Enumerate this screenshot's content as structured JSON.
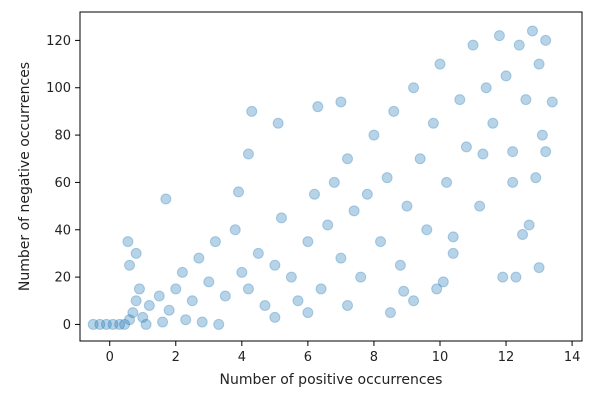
{
  "chart_data": {
    "type": "scatter",
    "title": "",
    "xlabel": "Number of positive occurrences",
    "ylabel": "Number of negative occurrences",
    "xlim": [
      -0.9,
      14.3
    ],
    "ylim": [
      -7,
      132
    ],
    "xticks": [
      0,
      2,
      4,
      6,
      8,
      10,
      12,
      14
    ],
    "yticks": [
      0,
      20,
      40,
      60,
      80,
      100,
      120
    ],
    "color": "#1f77b4",
    "grid": false,
    "series": [
      {
        "values": [
          [
            -0.5,
            0
          ],
          [
            -0.3,
            0
          ],
          [
            -0.1,
            0
          ],
          [
            0.1,
            0
          ],
          [
            0.3,
            0
          ],
          [
            0.45,
            0
          ],
          [
            0.6,
            2
          ],
          [
            0.7,
            5
          ],
          [
            0.8,
            10
          ],
          [
            0.9,
            15
          ],
          [
            0.6,
            25
          ],
          [
            0.55,
            35
          ],
          [
            0.8,
            30
          ],
          [
            1.0,
            3
          ],
          [
            1.2,
            8
          ],
          [
            1.5,
            12
          ],
          [
            1.8,
            6
          ],
          [
            2.0,
            15
          ],
          [
            2.2,
            22
          ],
          [
            2.5,
            10
          ],
          [
            2.7,
            28
          ],
          [
            3.0,
            18
          ],
          [
            3.2,
            35
          ],
          [
            3.5,
            12
          ],
          [
            3.8,
            40
          ],
          [
            4.0,
            22
          ],
          [
            4.2,
            15
          ],
          [
            4.5,
            30
          ],
          [
            4.7,
            8
          ],
          [
            5.0,
            25
          ],
          [
            5.2,
            45
          ],
          [
            5.5,
            20
          ],
          [
            5.7,
            10
          ],
          [
            6.0,
            35
          ],
          [
            6.2,
            55
          ],
          [
            6.4,
            15
          ],
          [
            6.6,
            42
          ],
          [
            6.8,
            60
          ],
          [
            7.0,
            28
          ],
          [
            7.2,
            70
          ],
          [
            7.4,
            48
          ],
          [
            7.6,
            20
          ],
          [
            7.8,
            55
          ],
          [
            8.0,
            80
          ],
          [
            8.2,
            35
          ],
          [
            8.4,
            62
          ],
          [
            8.6,
            90
          ],
          [
            8.8,
            25
          ],
          [
            9.0,
            50
          ],
          [
            9.2,
            100
          ],
          [
            9.4,
            70
          ],
          [
            9.6,
            40
          ],
          [
            9.8,
            85
          ],
          [
            10.0,
            110
          ],
          [
            10.2,
            60
          ],
          [
            10.4,
            30
          ],
          [
            10.6,
            95
          ],
          [
            10.8,
            75
          ],
          [
            11.0,
            118
          ],
          [
            11.2,
            50
          ],
          [
            11.4,
            100
          ],
          [
            11.6,
            85
          ],
          [
            11.8,
            122
          ],
          [
            12.0,
            105
          ],
          [
            12.2,
            60
          ],
          [
            12.4,
            118
          ],
          [
            12.6,
            95
          ],
          [
            12.8,
            124
          ],
          [
            13.0,
            110
          ],
          [
            13.2,
            120
          ],
          [
            13.4,
            94
          ],
          [
            13.1,
            80
          ],
          [
            12.9,
            62
          ],
          [
            12.7,
            42
          ],
          [
            12.3,
            20
          ],
          [
            13.0,
            24
          ],
          [
            13.2,
            73
          ],
          [
            12.2,
            73
          ],
          [
            11.3,
            72
          ],
          [
            10.4,
            37
          ],
          [
            9.9,
            15
          ],
          [
            9.2,
            10
          ],
          [
            8.5,
            5
          ],
          [
            7.2,
            8
          ],
          [
            6.0,
            5
          ],
          [
            5.0,
            3
          ],
          [
            4.3,
            90
          ],
          [
            6.3,
            92
          ],
          [
            7.0,
            94
          ],
          [
            5.1,
            85
          ],
          [
            4.2,
            72
          ],
          [
            3.9,
            56
          ],
          [
            1.7,
            53
          ],
          [
            11.9,
            20
          ],
          [
            12.5,
            38
          ],
          [
            10.1,
            18
          ],
          [
            8.9,
            14
          ],
          [
            3.3,
            0
          ],
          [
            2.8,
            1
          ],
          [
            2.3,
            2
          ],
          [
            1.6,
            1
          ],
          [
            1.1,
            0
          ]
        ]
      }
    ]
  }
}
